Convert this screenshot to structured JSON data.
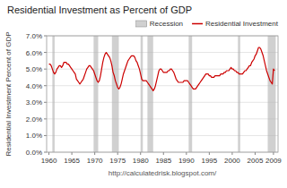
{
  "chart_data": {
    "type": "line",
    "title": "Residential Investment as Percent of GDP",
    "y_label": "Residential Investment Percent of GDP",
    "x_label": "http://calculatedrisk.blogspot.com/",
    "x": [
      1960,
      1960.25,
      1960.5,
      1960.75,
      1961,
      1961.25,
      1961.5,
      1961.75,
      1962,
      1962.25,
      1962.5,
      1962.75,
      1963,
      1963.25,
      1963.5,
      1963.75,
      1964,
      1964.25,
      1964.5,
      1964.75,
      1965,
      1965.25,
      1965.5,
      1965.75,
      1966,
      1966.25,
      1966.5,
      1966.75,
      1967,
      1967.25,
      1967.5,
      1967.75,
      1968,
      1968.25,
      1968.5,
      1968.75,
      1969,
      1969.25,
      1969.5,
      1969.75,
      1970,
      1970.25,
      1970.5,
      1970.75,
      1971,
      1971.25,
      1971.5,
      1971.75,
      1972,
      1972.25,
      1972.5,
      1972.75,
      1973,
      1973.25,
      1973.5,
      1973.75,
      1974,
      1974.25,
      1974.5,
      1974.75,
      1975,
      1975.25,
      1975.5,
      1975.75,
      1976,
      1976.25,
      1976.5,
      1976.75,
      1977,
      1977.25,
      1977.5,
      1977.75,
      1978,
      1978.25,
      1978.5,
      1978.75,
      1979,
      1979.25,
      1979.5,
      1979.75,
      1980,
      1980.25,
      1980.5,
      1980.75,
      1981,
      1981.25,
      1981.5,
      1981.75,
      1982,
      1982.25,
      1982.5,
      1982.75,
      1983,
      1983.25,
      1983.5,
      1983.75,
      1984,
      1984.25,
      1984.5,
      1984.75,
      1985,
      1985.25,
      1985.5,
      1985.75,
      1986,
      1986.25,
      1986.5,
      1986.75,
      1987,
      1987.25,
      1987.5,
      1987.75,
      1988,
      1988.25,
      1988.5,
      1988.75,
      1989,
      1989.25,
      1989.5,
      1989.75,
      1990,
      1990.25,
      1990.5,
      1990.75,
      1991,
      1991.25,
      1991.5,
      1991.75,
      1992,
      1992.25,
      1992.5,
      1992.75,
      1993,
      1993.25,
      1993.5,
      1993.75,
      1994,
      1994.25,
      1994.5,
      1994.75,
      1995,
      1995.25,
      1995.5,
      1995.75,
      1996,
      1996.25,
      1996.5,
      1996.75,
      1997,
      1997.25,
      1997.5,
      1997.75,
      1998,
      1998.25,
      1998.5,
      1998.75,
      1999,
      1999.25,
      1999.5,
      1999.75,
      2000,
      2000.25,
      2000.5,
      2000.75,
      2001,
      2001.25,
      2001.5,
      2001.75,
      2002,
      2002.25,
      2002.5,
      2002.75,
      2003,
      2003.25,
      2003.5,
      2003.75,
      2004,
      2004.25,
      2004.5,
      2004.75,
      2005,
      2005.25,
      2005.5,
      2005.75,
      2006,
      2006.25,
      2006.5,
      2006.75,
      2007,
      2007.25,
      2007.5,
      2007.75,
      2008,
      2008.25,
      2008.5,
      2008.75,
      2009,
      2009.25
    ],
    "series": [
      {
        "name": "Residential Investment",
        "color": "#cc0000",
        "values": [
          0.053,
          0.053,
          0.052,
          0.05,
          0.048,
          0.047,
          0.048,
          0.05,
          0.051,
          0.052,
          0.052,
          0.051,
          0.052,
          0.054,
          0.054,
          0.054,
          0.053,
          0.053,
          0.052,
          0.051,
          0.05,
          0.049,
          0.048,
          0.047,
          0.044,
          0.043,
          0.042,
          0.041,
          0.042,
          0.043,
          0.044,
          0.046,
          0.048,
          0.05,
          0.051,
          0.052,
          0.052,
          0.051,
          0.05,
          0.049,
          0.047,
          0.045,
          0.043,
          0.042,
          0.043,
          0.046,
          0.05,
          0.054,
          0.057,
          0.059,
          0.06,
          0.059,
          0.058,
          0.057,
          0.055,
          0.052,
          0.048,
          0.046,
          0.043,
          0.041,
          0.039,
          0.038,
          0.039,
          0.041,
          0.044,
          0.047,
          0.049,
          0.051,
          0.053,
          0.055,
          0.056,
          0.057,
          0.058,
          0.058,
          0.058,
          0.057,
          0.055,
          0.054,
          0.052,
          0.05,
          0.047,
          0.044,
          0.043,
          0.043,
          0.043,
          0.043,
          0.042,
          0.041,
          0.04,
          0.039,
          0.038,
          0.037,
          0.038,
          0.04,
          0.043,
          0.046,
          0.049,
          0.05,
          0.05,
          0.049,
          0.048,
          0.048,
          0.048,
          0.048,
          0.049,
          0.049,
          0.05,
          0.05,
          0.049,
          0.048,
          0.046,
          0.044,
          0.043,
          0.042,
          0.042,
          0.042,
          0.042,
          0.042,
          0.043,
          0.043,
          0.043,
          0.043,
          0.042,
          0.041,
          0.04,
          0.039,
          0.038,
          0.038,
          0.038,
          0.039,
          0.04,
          0.041,
          0.042,
          0.043,
          0.044,
          0.045,
          0.046,
          0.047,
          0.047,
          0.047,
          0.046,
          0.046,
          0.045,
          0.045,
          0.045,
          0.046,
          0.046,
          0.046,
          0.046,
          0.046,
          0.047,
          0.047,
          0.047,
          0.048,
          0.048,
          0.049,
          0.049,
          0.049,
          0.05,
          0.051,
          0.05,
          0.05,
          0.049,
          0.049,
          0.048,
          0.048,
          0.047,
          0.047,
          0.047,
          0.047,
          0.048,
          0.049,
          0.049,
          0.05,
          0.051,
          0.052,
          0.052,
          0.054,
          0.055,
          0.056,
          0.058,
          0.059,
          0.061,
          0.063,
          0.063,
          0.062,
          0.06,
          0.058,
          0.055,
          0.052,
          0.049,
          0.047,
          0.045,
          0.043,
          0.042,
          0.041,
          0.05,
          0.049
        ]
      }
    ],
    "shaded": {
      "name": "Recession",
      "color": "#b0b0b0",
      "ranges": [
        [
          1960.75,
          1961.25
        ],
        [
          1969.75,
          1970.75
        ],
        [
          1973.75,
          1975.25
        ],
        [
          1980.0,
          1980.5
        ],
        [
          1981.5,
          1982.75
        ],
        [
          1990.5,
          1991.25
        ],
        [
          2001.25,
          2001.75
        ],
        [
          2007.75,
          2009.5
        ]
      ]
    },
    "xlim": [
      1959.5,
      2010.0
    ],
    "xticks": [
      1960,
      1965,
      1970,
      1975,
      1980,
      1985,
      1990,
      1995,
      2000,
      2005,
      2009
    ],
    "ylim": [
      0.0,
      0.07
    ],
    "yticks": [
      {
        "value": 0.0,
        "label": "0.0%"
      },
      {
        "value": 0.01,
        "label": "1.0%"
      },
      {
        "value": 0.02,
        "label": "2.0%"
      },
      {
        "value": 0.03,
        "label": "3.0%"
      },
      {
        "value": 0.04,
        "label": "4.0%"
      },
      {
        "value": 0.05,
        "label": "5.0%"
      },
      {
        "value": 0.06,
        "label": "6.0%"
      },
      {
        "value": 0.07,
        "label": "7.0%"
      }
    ],
    "grid": true,
    "legend": "upper right"
  }
}
